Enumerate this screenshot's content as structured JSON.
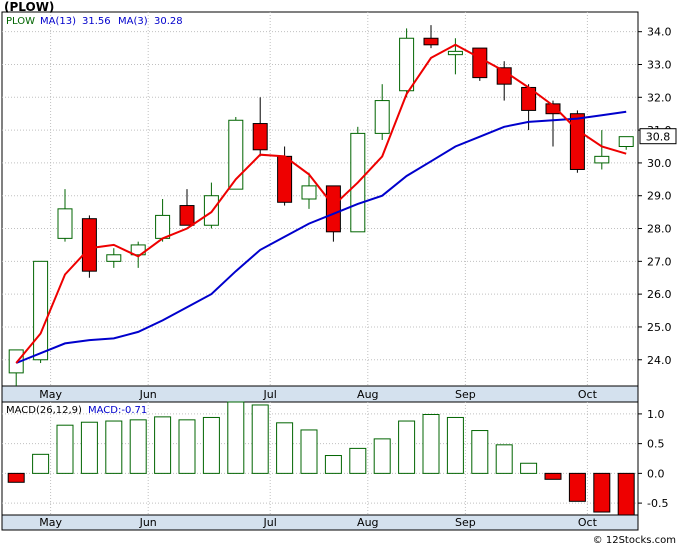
{
  "ticker_title": "(PLOW)",
  "watermark": "© 12Stocks.com",
  "colors": {
    "up": "#ffffff",
    "up_border": "#006400",
    "down": "#ee0000",
    "ma13": "#0000cc",
    "ma3": "#ee0000",
    "panel_bg": "#ffffff",
    "axis_bar": "#d4e1ee",
    "grid": "#c0c0c0",
    "macd_pos": "#ffffff",
    "macd_pos_border": "#006400",
    "macd_neg": "#ee0000"
  },
  "price_legend": {
    "ticker": "PLOW",
    "ma13_label": "MA(13)",
    "ma13_value": "31.56",
    "ma3_label": "MA(3)",
    "ma3_value": "30.28"
  },
  "macd_legend": {
    "label": "MACD(26,12,9)",
    "value_label": "MACD:-0.71"
  },
  "last_price_label": "30.8",
  "chart_data": [
    {
      "type": "candlestick",
      "title": "(PLOW)",
      "x_month_labels": [
        {
          "label": "May",
          "index": 1
        },
        {
          "label": "Jun",
          "index": 5
        },
        {
          "label": "Jul",
          "index": 10
        },
        {
          "label": "Aug",
          "index": 14
        },
        {
          "label": "Sep",
          "index": 18
        },
        {
          "label": "Oct",
          "index": 23
        }
      ],
      "yticks": [
        24.0,
        25.0,
        26.0,
        27.0,
        28.0,
        29.0,
        30.0,
        31.0,
        32.0,
        33.0,
        34.0
      ],
      "ylim": [
        23.2,
        34.6
      ],
      "grid": true,
      "candles": [
        {
          "o": 23.6,
          "h": 24.3,
          "l": 23.2,
          "c": 24.3
        },
        {
          "o": 24.0,
          "h": 27.0,
          "l": 23.9,
          "c": 27.0
        },
        {
          "o": 27.7,
          "h": 29.2,
          "l": 27.6,
          "c": 28.6
        },
        {
          "o": 28.3,
          "h": 28.4,
          "l": 26.5,
          "c": 26.7
        },
        {
          "o": 27.0,
          "h": 27.4,
          "l": 26.8,
          "c": 27.2
        },
        {
          "o": 27.2,
          "h": 27.6,
          "l": 26.8,
          "c": 27.5
        },
        {
          "o": 27.7,
          "h": 28.9,
          "l": 27.6,
          "c": 28.4
        },
        {
          "o": 28.7,
          "h": 29.2,
          "l": 28.1,
          "c": 28.1
        },
        {
          "o": 28.1,
          "h": 29.4,
          "l": 28.0,
          "c": 29.0
        },
        {
          "o": 29.2,
          "h": 31.4,
          "l": 29.2,
          "c": 31.3
        },
        {
          "o": 31.2,
          "h": 32.0,
          "l": 30.2,
          "c": 30.4
        },
        {
          "o": 30.2,
          "h": 30.5,
          "l": 28.7,
          "c": 28.8
        },
        {
          "o": 28.9,
          "h": 29.7,
          "l": 28.6,
          "c": 29.3
        },
        {
          "o": 29.3,
          "h": 29.3,
          "l": 27.6,
          "c": 27.9
        },
        {
          "o": 27.9,
          "h": 31.1,
          "l": 27.9,
          "c": 30.9
        },
        {
          "o": 30.9,
          "h": 32.4,
          "l": 30.7,
          "c": 31.9
        },
        {
          "o": 32.2,
          "h": 34.1,
          "l": 32.0,
          "c": 33.8
        },
        {
          "o": 33.8,
          "h": 34.2,
          "l": 33.5,
          "c": 33.6
        },
        {
          "o": 33.3,
          "h": 33.8,
          "l": 32.7,
          "c": 33.4
        },
        {
          "o": 33.5,
          "h": 33.5,
          "l": 32.5,
          "c": 32.6
        },
        {
          "o": 32.9,
          "h": 33.1,
          "l": 31.9,
          "c": 32.4
        },
        {
          "o": 32.3,
          "h": 32.4,
          "l": 31.0,
          "c": 31.6
        },
        {
          "o": 31.8,
          "h": 31.9,
          "l": 30.5,
          "c": 31.5
        },
        {
          "o": 31.5,
          "h": 31.6,
          "l": 29.7,
          "c": 29.8
        },
        {
          "o": 30.0,
          "h": 31.0,
          "l": 29.8,
          "c": 30.2
        },
        {
          "o": 30.5,
          "h": 30.8,
          "l": 30.4,
          "c": 30.8
        }
      ],
      "series": [
        {
          "name": "MA(13)",
          "values": [
            23.9,
            24.2,
            24.5,
            24.6,
            24.65,
            24.85,
            25.2,
            25.6,
            26.0,
            26.7,
            27.35,
            27.75,
            28.15,
            28.45,
            28.75,
            29.0,
            29.6,
            30.05,
            30.5,
            30.8,
            31.1,
            31.25,
            31.3,
            31.35,
            31.45,
            31.56
          ]
        },
        {
          "name": "MA(3)",
          "values": [
            23.9,
            24.8,
            26.6,
            27.4,
            27.5,
            27.15,
            27.7,
            28.0,
            28.5,
            29.5,
            30.25,
            30.2,
            29.65,
            28.7,
            29.4,
            30.2,
            32.1,
            33.2,
            33.6,
            33.2,
            32.8,
            32.3,
            31.75,
            31.0,
            30.5,
            30.28
          ]
        }
      ]
    },
    {
      "type": "bar",
      "title": "MACD(26,12,9)",
      "yticks": [
        -0.5,
        0.0,
        0.5,
        1.0
      ],
      "ylim": [
        -0.7,
        1.2
      ],
      "values": [
        -0.15,
        0.32,
        0.81,
        0.86,
        0.88,
        0.9,
        0.95,
        0.9,
        0.94,
        1.2,
        1.15,
        0.85,
        0.73,
        0.3,
        0.42,
        0.58,
        0.88,
        0.99,
        0.94,
        0.72,
        0.48,
        0.17,
        -0.1,
        -0.47,
        -0.65,
        -0.71
      ]
    }
  ]
}
